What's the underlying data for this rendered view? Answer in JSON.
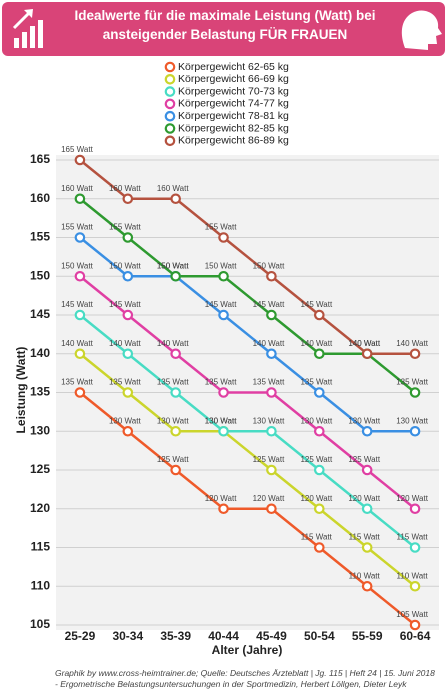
{
  "chart_data": {
    "type": "line",
    "title": "Idealwerte für die maximale Leistung (Watt) bei ansteigender Belastung FÜR FRAUEN",
    "x_label": "Alter (Jahre)",
    "y_label": "Leistung (Watt)",
    "source": "Graphik by www.cross-heimtrainer.de; Quelle: Deutsches Ärzteblatt | Jg. 115 | Heft 24 | 15. Juni 2018 - Ergometrische Belastungsuntersuchungen in der Sportmedizin, Herbert Löllgen, Dieter Leyk",
    "categories": [
      "25-29",
      "30-34",
      "35-39",
      "40-44",
      "45-49",
      "50-54",
      "55-59",
      "60-64"
    ],
    "ylim": [
      105,
      165
    ],
    "yticks": [
      105,
      110,
      115,
      120,
      125,
      130,
      135,
      140,
      145,
      150,
      155,
      160,
      165
    ],
    "grid": true,
    "series": [
      {
        "name": "Körpergewicht 62-65 kg",
        "color": "#ef5a2a",
        "values": [
          135,
          130,
          125,
          120,
          120,
          115,
          110,
          105
        ],
        "value_labels": [
          "135 Watt",
          "130 Watt",
          "125 Watt",
          "120 Watt",
          "120 Watt",
          "115 Watt",
          "110 Watt",
          "105 Watt"
        ]
      },
      {
        "name": "Körpergewicht 66-69 kg",
        "color": "#cbd52c",
        "values": [
          140,
          135,
          130,
          130,
          125,
          120,
          115,
          110
        ],
        "value_labels": [
          "140 Watt",
          "135 Watt",
          "130 Watt",
          "130 Watt",
          "125 Watt",
          "120 Watt",
          "115 Watt",
          "110 Watt"
        ]
      },
      {
        "name": "Körpergewicht 70-73 kg",
        "color": "#48dcc4",
        "values": [
          145,
          140,
          135,
          130,
          130,
          125,
          120,
          115
        ],
        "value_labels": [
          "145 Watt",
          "140 Watt",
          "135 Watt",
          "130 Watt",
          "130 Watt",
          "125 Watt",
          "120 Watt",
          "115 Watt"
        ]
      },
      {
        "name": "Körpergewicht 74-77 kg",
        "color": "#e03fa3",
        "values": [
          150,
          145,
          140,
          135,
          135,
          130,
          125,
          120
        ],
        "value_labels": [
          "150 Watt",
          "145 Watt",
          "140 Watt",
          "135 Watt",
          "135 Watt",
          "130 Watt",
          "125 Watt",
          "120 Watt"
        ]
      },
      {
        "name": "Körpergewicht 78-81 kg",
        "color": "#3a8fe3",
        "values": [
          155,
          150,
          150,
          145,
          140,
          135,
          130,
          130
        ],
        "value_labels": [
          "155 Watt",
          "150 Watt",
          "150 Watt",
          "145 Watt",
          "140 Watt",
          "135 Watt",
          "130 Watt",
          "130 Watt"
        ]
      },
      {
        "name": "Körpergewicht 82-85 kg",
        "color": "#2e9a30",
        "values": [
          160,
          155,
          150,
          150,
          145,
          140,
          140,
          135
        ],
        "value_labels": [
          "160 Watt",
          "155 Watt",
          "150 Watt",
          "150 Watt",
          "145 Watt",
          "140 Watt",
          "140 Watt",
          "135 Watt"
        ]
      },
      {
        "name": "Körpergewicht 86-89 kg",
        "color": "#b5523f",
        "values": [
          165,
          160,
          160,
          155,
          150,
          145,
          140,
          140
        ],
        "value_labels": [
          "165 Watt",
          "160 Watt",
          "160 Watt",
          "155 Watt",
          "150 Watt",
          "145 Watt",
          "140 Watt",
          "140 Watt"
        ]
      }
    ]
  }
}
